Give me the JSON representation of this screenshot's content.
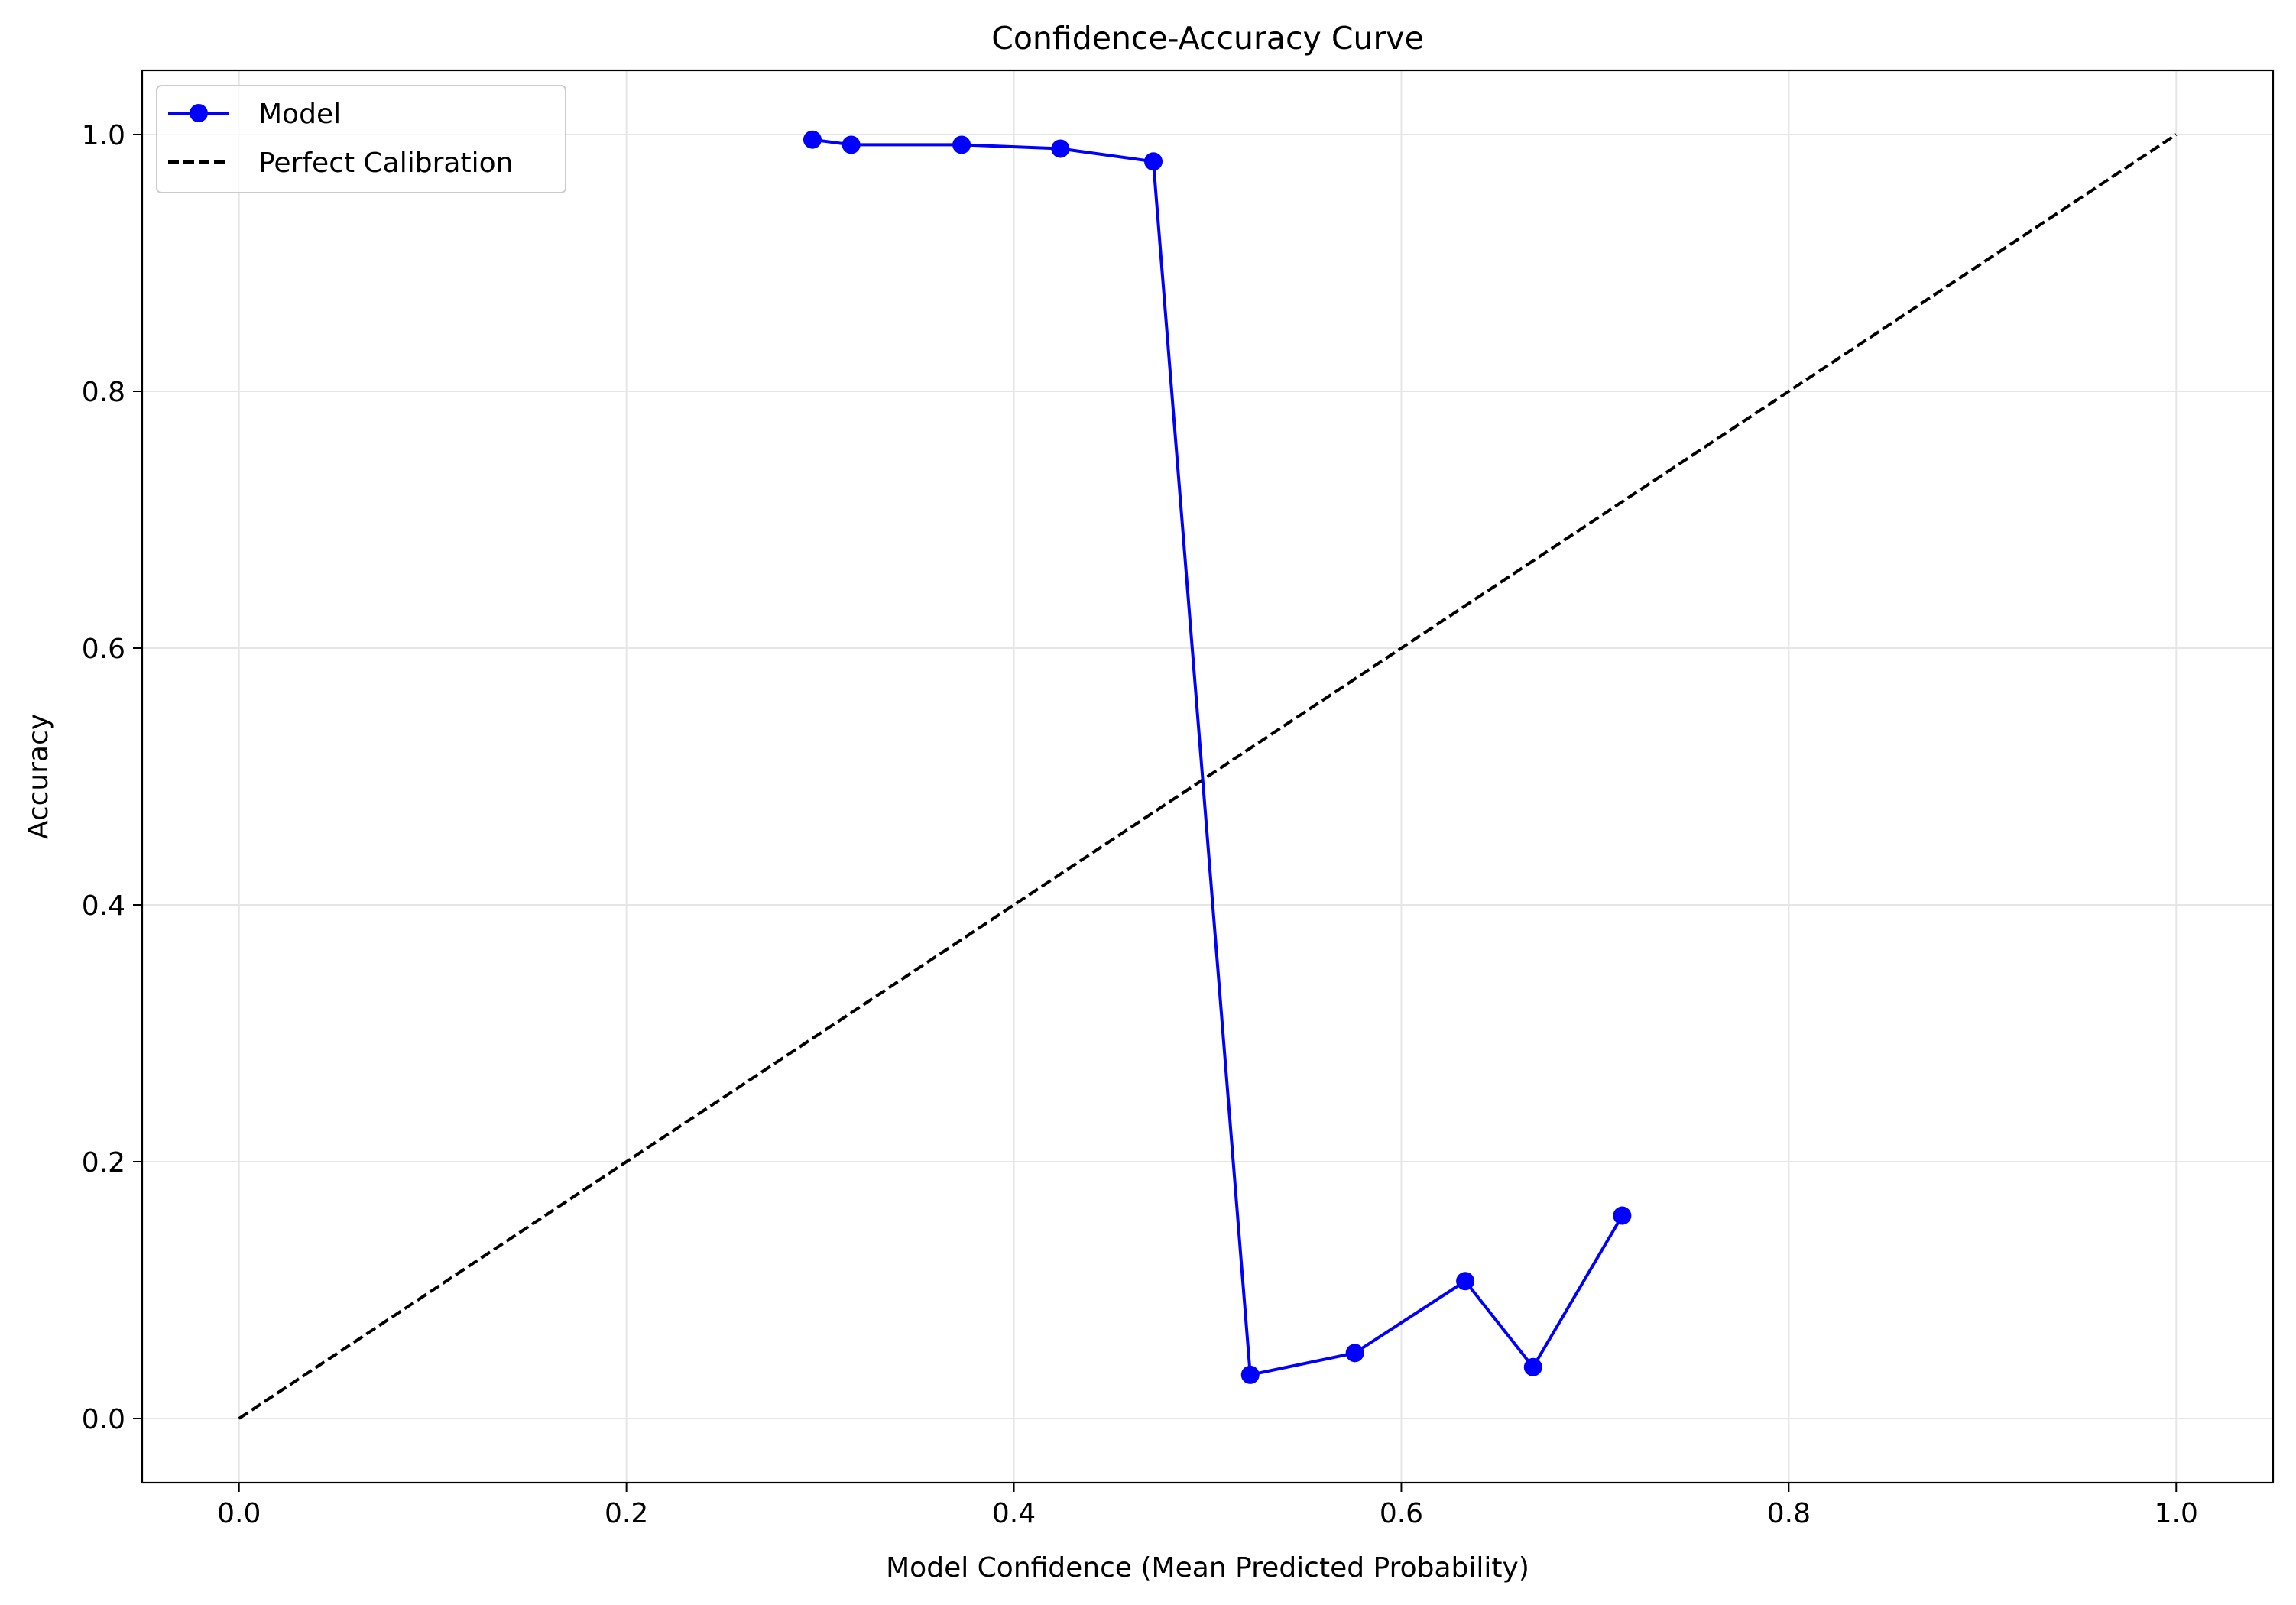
{
  "chart_data": {
    "type": "line",
    "title": "Confidence-Accuracy Curve",
    "xlabel": "Model Confidence (Mean Predicted Probability)",
    "ylabel": "Accuracy",
    "xlim": [
      -0.05,
      1.05
    ],
    "ylim": [
      -0.05,
      1.05
    ],
    "xticks": [
      0.0,
      0.2,
      0.4,
      0.6,
      0.8,
      1.0
    ],
    "xtick_labels": [
      "0.0",
      "0.2",
      "0.4",
      "0.6",
      "0.8",
      "1.0"
    ],
    "yticks": [
      0.0,
      0.2,
      0.4,
      0.6,
      0.8,
      1.0
    ],
    "ytick_labels": [
      "0.0",
      "0.2",
      "0.4",
      "0.6",
      "0.8",
      "1.0"
    ],
    "grid": true,
    "legend_position": "top-left",
    "series": [
      {
        "name": "Model",
        "color": "#0000ff",
        "style": "solid",
        "marker": "circle",
        "x": [
          0.296,
          0.316,
          0.373,
          0.424,
          0.472,
          0.522,
          0.576,
          0.633,
          0.668,
          0.714
        ],
        "y": [
          0.996,
          0.992,
          0.992,
          0.989,
          0.979,
          0.034,
          0.051,
          0.107,
          0.04,
          0.158
        ]
      },
      {
        "name": "Perfect Calibration",
        "color": "#000000",
        "style": "dashed",
        "marker": "none",
        "x": [
          0.0,
          1.0
        ],
        "y": [
          0.0,
          1.0
        ]
      }
    ]
  }
}
